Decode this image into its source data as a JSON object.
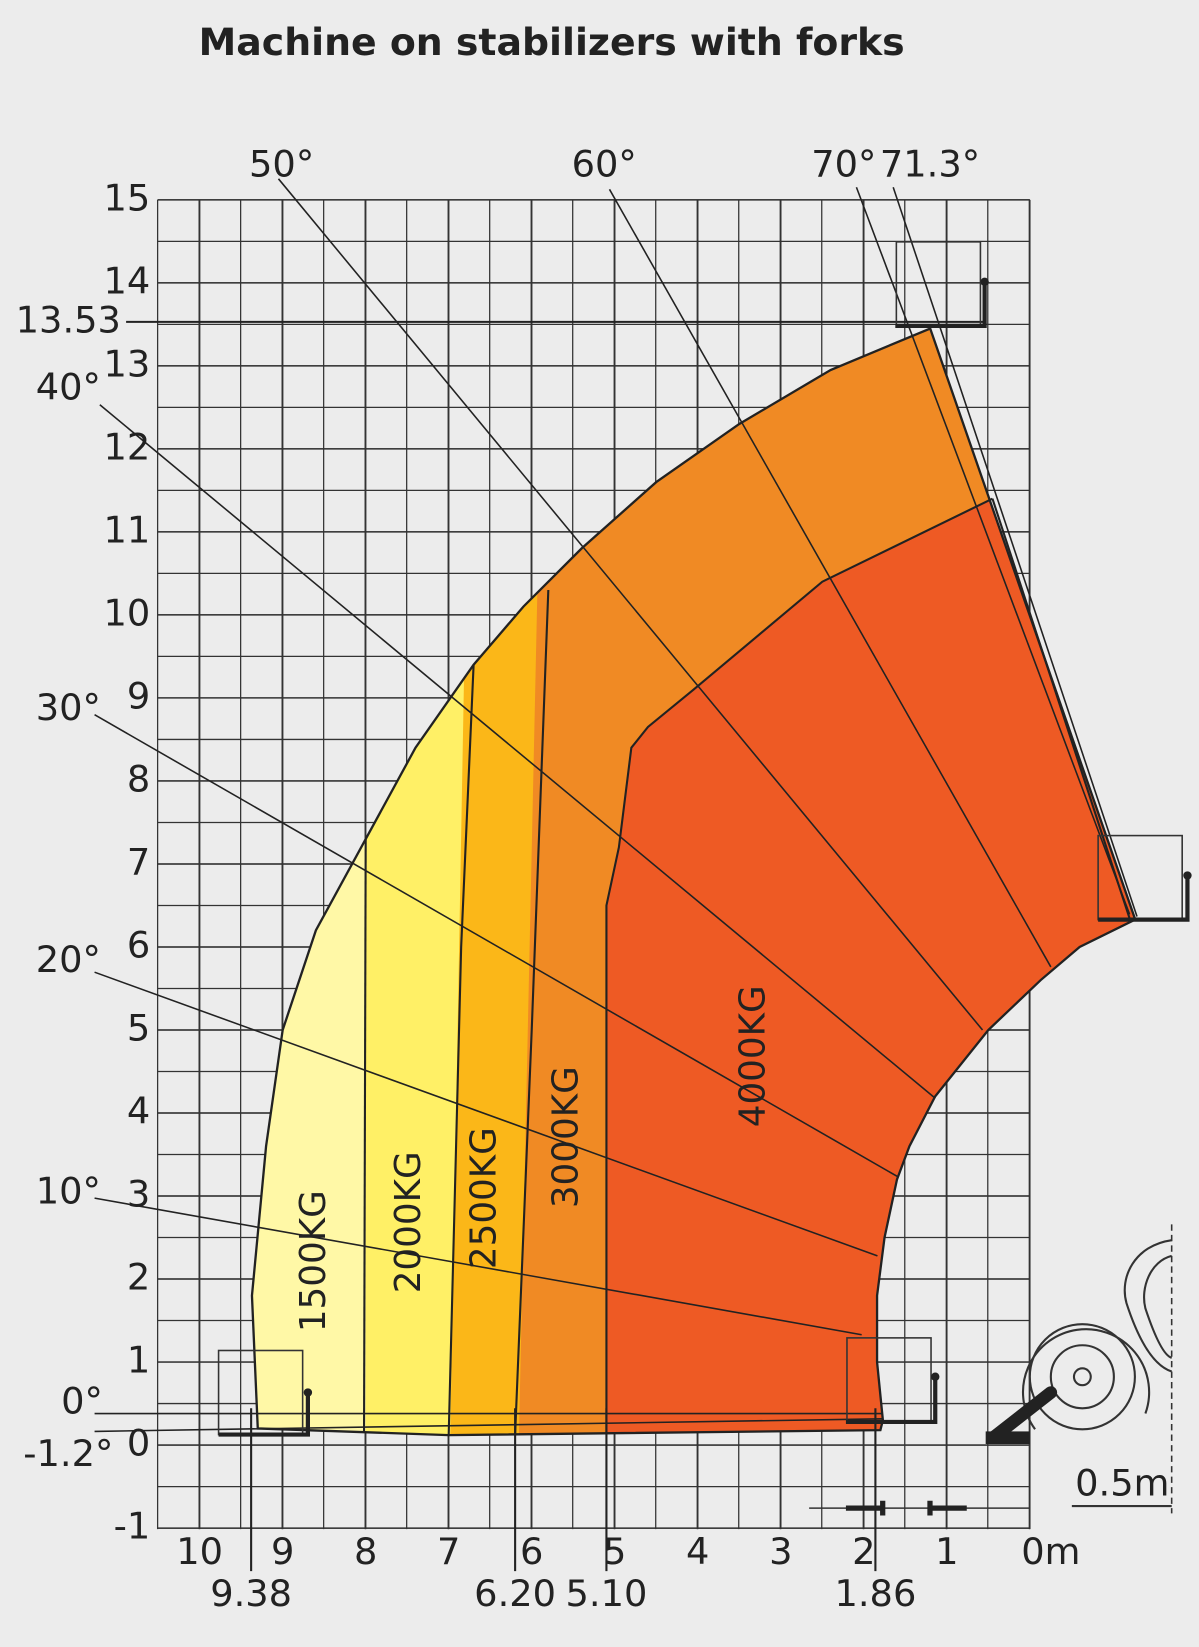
{
  "header": {
    "title": "Machine on stabilizers with forks"
  },
  "axes": {
    "yticks": [
      -1,
      0,
      1,
      2,
      3,
      4,
      5,
      6,
      7,
      8,
      9,
      10,
      11,
      12,
      13,
      14,
      15
    ],
    "xticks": [
      10,
      9,
      8,
      7,
      6,
      5,
      4,
      3,
      2,
      1,
      {
        "value": 0,
        "label": "0m"
      }
    ],
    "height_marks": [
      13.53
    ],
    "reach_marks": [
      9.38,
      {
        "value": 6.2,
        "label": "6.20"
      },
      {
        "value": 5.1,
        "label": "5.10"
      },
      1.86
    ]
  },
  "angles": [
    "50°",
    "60°",
    "70°",
    "71.3°",
    "40°",
    "30°",
    "20°",
    "10°",
    "0°",
    "-1.2°"
  ],
  "load_zones": [
    "1500KG",
    "2000KG",
    "2500KG",
    "3000KG",
    "4000KG"
  ],
  "scale_label": "0.5m"
}
